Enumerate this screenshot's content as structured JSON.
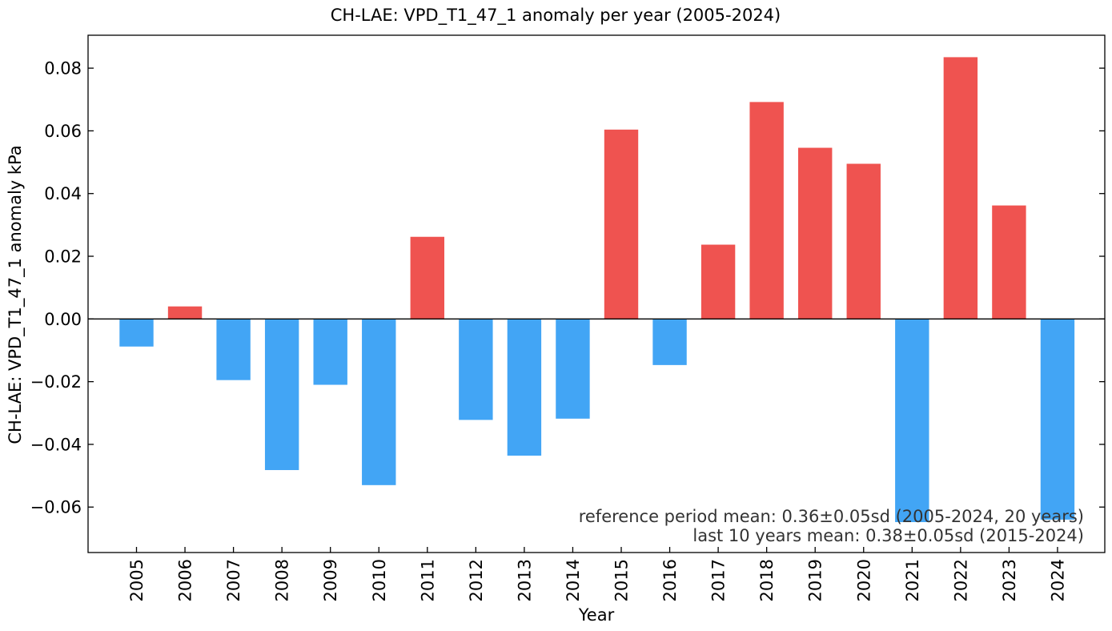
{
  "chart_data": {
    "type": "bar",
    "title": "CH-LAE: VPD_T1_47_1 anomaly per year (2005-2024)",
    "xlabel": "Year",
    "ylabel": "CH-LAE: VPD_T1_47_1 anomaly  kPa",
    "categories": [
      "2005",
      "2006",
      "2007",
      "2008",
      "2009",
      "2010",
      "2011",
      "2012",
      "2013",
      "2014",
      "2015",
      "2016",
      "2017",
      "2018",
      "2019",
      "2020",
      "2021",
      "2022",
      "2023",
      "2024"
    ],
    "values": [
      -0.0088,
      0.004,
      -0.0195,
      -0.0482,
      -0.021,
      -0.053,
      0.0262,
      -0.0322,
      -0.0436,
      -0.0318,
      0.0604,
      -0.0147,
      0.0237,
      0.0692,
      0.0546,
      0.0495,
      -0.0648,
      0.0835,
      0.0362,
      -0.064
    ],
    "ylim": [
      -0.0745,
      0.0905
    ],
    "yticks": [
      -0.06,
      -0.04,
      -0.02,
      0.0,
      0.02,
      0.04,
      0.06,
      0.08
    ],
    "ytick_labels": [
      "−0.06",
      "−0.04",
      "−0.02",
      "0.00",
      "0.02",
      "0.04",
      "0.06",
      "0.08"
    ],
    "positive_color": "#ef5350",
    "negative_color": "#42a5f5",
    "grid": false,
    "annotations": [
      "reference period mean: 0.36±0.05sd (2005-2024, 20 years)",
      "last 10 years mean: 0.38±0.05sd (2015-2024)"
    ]
  }
}
